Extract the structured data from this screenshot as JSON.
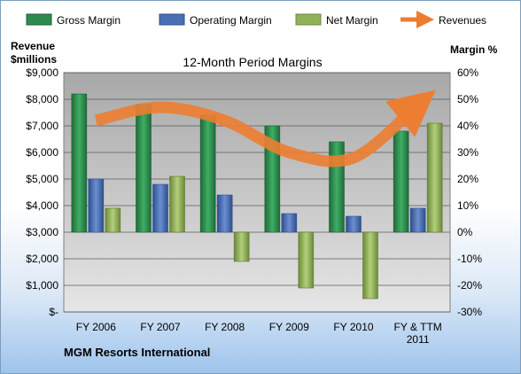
{
  "chart_data": {
    "type": "bar",
    "title": "12-Month Period Margins",
    "company": "MGM Resorts International",
    "left_axis": {
      "label_line1": "Revenue",
      "label_line2": "$millions",
      "min": 0,
      "max": 9000,
      "step": 1000,
      "tick_labels": [
        "$-",
        "$1,000",
        "$2,000",
        "$3,000",
        "$4,000",
        "$5,000",
        "$6,000",
        "$7,000",
        "$8,000",
        "$9,000"
      ]
    },
    "right_axis": {
      "label": "Margin %",
      "min": -30,
      "max": 60,
      "step": 10,
      "tick_labels": [
        "-30%",
        "-20%",
        "-10%",
        "0%",
        "10%",
        "20%",
        "30%",
        "40%",
        "50%",
        "60%"
      ]
    },
    "categories": [
      [
        "FY 2006"
      ],
      [
        "FY 2007"
      ],
      [
        "FY 2008"
      ],
      [
        "FY 2009"
      ],
      [
        "FY 2010"
      ],
      [
        "FY & TTM",
        "2011"
      ]
    ],
    "series": [
      {
        "name": "Gross Margin",
        "axis": "right",
        "type": "bar",
        "color": "#2e8b4e",
        "values": [
          52,
          48,
          44,
          40,
          34,
          38
        ]
      },
      {
        "name": "Operating Margin",
        "axis": "right",
        "type": "bar",
        "color": "#4a6fb4",
        "values": [
          20,
          18,
          14,
          7,
          6,
          9
        ]
      },
      {
        "name": "Net Margin",
        "axis": "right",
        "type": "bar",
        "color": "#8fb15a",
        "values": [
          9,
          21,
          -11,
          -21,
          -25,
          41
        ]
      },
      {
        "name": "Revenues",
        "axis": "left",
        "type": "line",
        "color": "#ed7d31",
        "values": [
          7200,
          7700,
          7200,
          6000,
          5800,
          7800
        ]
      }
    ],
    "grid": true,
    "legend": "top"
  }
}
